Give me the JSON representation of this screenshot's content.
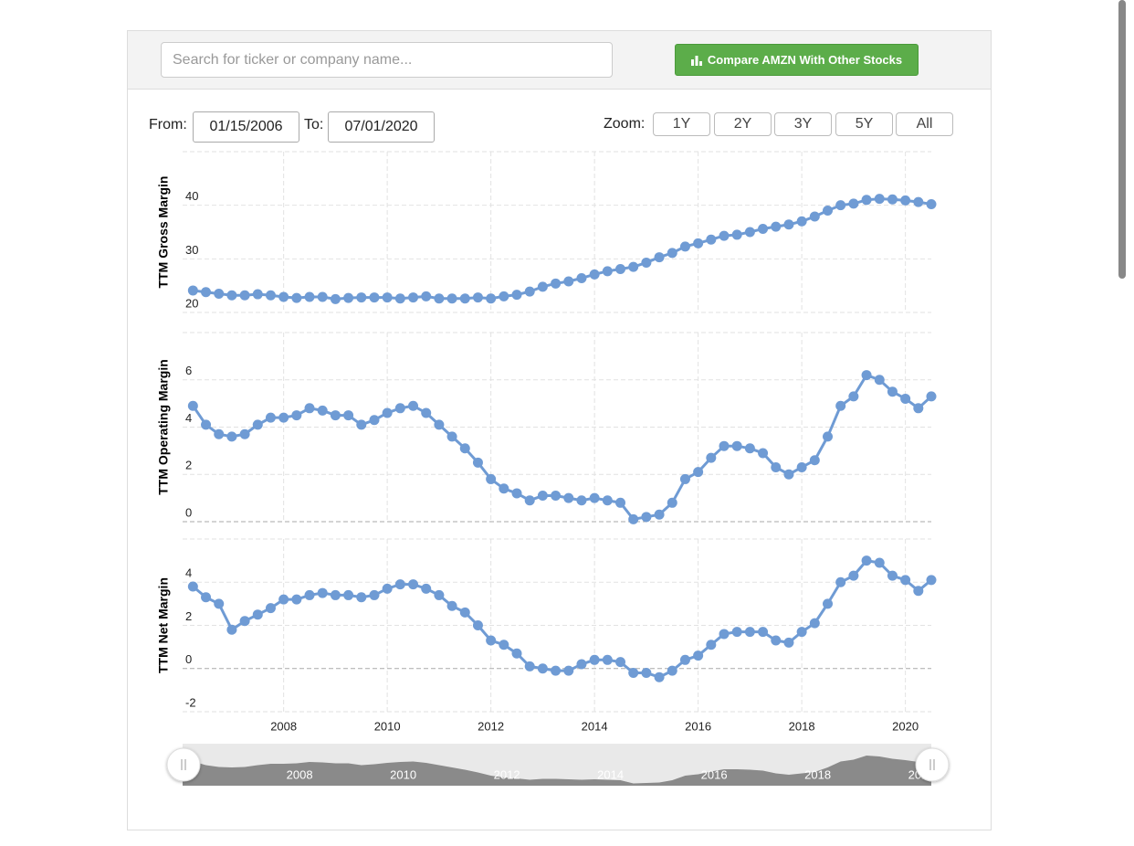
{
  "search": {
    "placeholder": "Search for ticker or company name..."
  },
  "compare_button": "Compare AMZN With Other Stocks",
  "range": {
    "from_label": "From:",
    "from": "01/15/2006",
    "to_label": "To:",
    "to": "07/01/2020"
  },
  "zoom": {
    "label": "Zoom:",
    "buttons": [
      "1Y",
      "2Y",
      "3Y",
      "5Y",
      "All"
    ]
  },
  "chart_data": [
    {
      "type": "line",
      "y_label": "TTM Gross Margin",
      "color": "#6f9bd4",
      "grid": true,
      "ylim": [
        20,
        50
      ],
      "yticks": [
        20,
        30,
        40
      ],
      "xlim": [
        2006.05,
        2020.5
      ],
      "x": [
        2006.25,
        2006.5,
        2006.75,
        2007,
        2007.25,
        2007.5,
        2007.75,
        2008,
        2008.25,
        2008.5,
        2008.75,
        2009,
        2009.25,
        2009.5,
        2009.75,
        2010,
        2010.25,
        2010.5,
        2010.75,
        2011,
        2011.25,
        2011.5,
        2011.75,
        2012,
        2012.25,
        2012.5,
        2012.75,
        2013,
        2013.25,
        2013.5,
        2013.75,
        2014,
        2014.25,
        2014.5,
        2014.75,
        2015,
        2015.25,
        2015.5,
        2015.75,
        2016,
        2016.25,
        2016.5,
        2016.75,
        2017,
        2017.25,
        2017.5,
        2017.75,
        2018,
        2018.25,
        2018.5,
        2018.75,
        2019,
        2019.25,
        2019.5,
        2019.75,
        2020,
        2020.25,
        2020.5
      ],
      "values": [
        24.1,
        23.8,
        23.5,
        23.2,
        23.2,
        23.4,
        23.2,
        22.9,
        22.7,
        22.9,
        22.9,
        22.5,
        22.7,
        22.8,
        22.8,
        22.8,
        22.6,
        22.8,
        23.0,
        22.6,
        22.6,
        22.6,
        22.8,
        22.6,
        23.0,
        23.3,
        23.9,
        24.8,
        25.4,
        25.8,
        26.4,
        27.1,
        27.7,
        28.1,
        28.5,
        29.3,
        30.3,
        31.1,
        32.3,
        32.9,
        33.6,
        34.3,
        34.5,
        35.0,
        35.6,
        36.0,
        36.4,
        37.0,
        37.9,
        39.0,
        40.0,
        40.3,
        41.0,
        41.2,
        41.1,
        40.9,
        40.6,
        40.2
      ]
    },
    {
      "type": "line",
      "y_label": "TTM Operating Margin",
      "color": "#6f9bd4",
      "grid": true,
      "ylim": [
        0,
        8
      ],
      "yticks": [
        0,
        2,
        4,
        6
      ],
      "xlim": [
        2006.05,
        2020.5
      ],
      "x": [
        2006.25,
        2006.5,
        2006.75,
        2007,
        2007.25,
        2007.5,
        2007.75,
        2008,
        2008.25,
        2008.5,
        2008.75,
        2009,
        2009.25,
        2009.5,
        2009.75,
        2010,
        2010.25,
        2010.5,
        2010.75,
        2011,
        2011.25,
        2011.5,
        2011.75,
        2012,
        2012.25,
        2012.5,
        2012.75,
        2013,
        2013.25,
        2013.5,
        2013.75,
        2014,
        2014.25,
        2014.5,
        2014.75,
        2015,
        2015.25,
        2015.5,
        2015.75,
        2016,
        2016.25,
        2016.5,
        2016.75,
        2017,
        2017.25,
        2017.5,
        2017.75,
        2018,
        2018.25,
        2018.5,
        2018.75,
        2019,
        2019.25,
        2019.5,
        2019.75,
        2020,
        2020.25,
        2020.5
      ],
      "values": [
        4.9,
        4.1,
        3.7,
        3.6,
        3.7,
        4.1,
        4.4,
        4.4,
        4.5,
        4.8,
        4.7,
        4.5,
        4.5,
        4.1,
        4.3,
        4.6,
        4.8,
        4.9,
        4.6,
        4.1,
        3.6,
        3.1,
        2.5,
        1.8,
        1.4,
        1.2,
        0.9,
        1.1,
        1.1,
        1.0,
        0.9,
        1.0,
        0.9,
        0.8,
        0.1,
        0.2,
        0.3,
        0.8,
        1.8,
        2.1,
        2.7,
        3.2,
        3.2,
        3.1,
        2.9,
        2.3,
        2.0,
        2.3,
        2.6,
        3.6,
        4.9,
        5.3,
        6.2,
        6.0,
        5.5,
        5.2,
        4.8,
        5.3
      ]
    },
    {
      "type": "line",
      "y_label": "TTM Net Margin",
      "color": "#6f9bd4",
      "grid": true,
      "ylim": [
        -2,
        6
      ],
      "yticks": [
        -2,
        0,
        2,
        4
      ],
      "xlim": [
        2006.05,
        2020.5
      ],
      "xticks": [
        2008,
        2010,
        2012,
        2014,
        2016,
        2018,
        2020
      ],
      "x": [
        2006.25,
        2006.5,
        2006.75,
        2007,
        2007.25,
        2007.5,
        2007.75,
        2008,
        2008.25,
        2008.5,
        2008.75,
        2009,
        2009.25,
        2009.5,
        2009.75,
        2010,
        2010.25,
        2010.5,
        2010.75,
        2011,
        2011.25,
        2011.5,
        2011.75,
        2012,
        2012.25,
        2012.5,
        2012.75,
        2013,
        2013.25,
        2013.5,
        2013.75,
        2014,
        2014.25,
        2014.5,
        2014.75,
        2015,
        2015.25,
        2015.5,
        2015.75,
        2016,
        2016.25,
        2016.5,
        2016.75,
        2017,
        2017.25,
        2017.5,
        2017.75,
        2018,
        2018.25,
        2018.5,
        2018.75,
        2019,
        2019.25,
        2019.5,
        2019.75,
        2020,
        2020.25,
        2020.5
      ],
      "values": [
        3.8,
        3.3,
        3.0,
        1.8,
        2.2,
        2.5,
        2.8,
        3.2,
        3.2,
        3.4,
        3.5,
        3.4,
        3.4,
        3.3,
        3.4,
        3.7,
        3.9,
        3.9,
        3.7,
        3.4,
        2.9,
        2.6,
        2.0,
        1.3,
        1.1,
        0.7,
        0.1,
        0.0,
        -0.1,
        -0.1,
        0.2,
        0.4,
        0.4,
        0.3,
        -0.2,
        -0.2,
        -0.4,
        -0.1,
        0.4,
        0.6,
        1.1,
        1.6,
        1.7,
        1.7,
        1.7,
        1.3,
        1.2,
        1.7,
        2.1,
        3.0,
        4.0,
        4.3,
        5.0,
        4.9,
        4.3,
        4.1,
        3.6,
        4.1
      ]
    }
  ]
}
